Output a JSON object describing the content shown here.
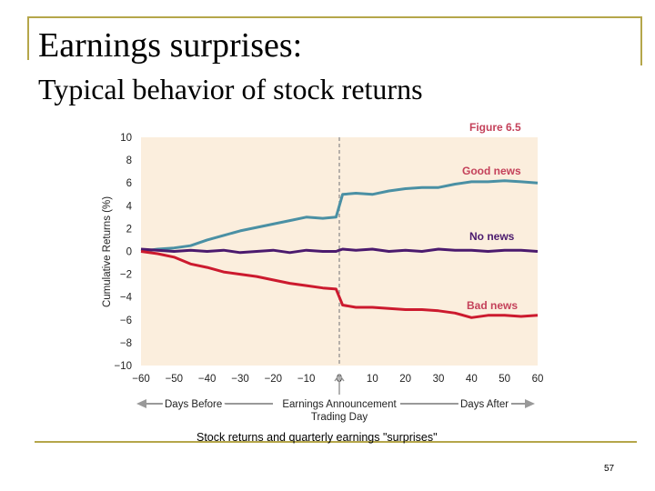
{
  "slide": {
    "title": "Earnings surprises:",
    "subtitle": "Typical behavior of stock returns",
    "caption": "Stock returns and quarterly earnings \"surprises\"",
    "page_number": "57"
  },
  "chart_data": {
    "type": "line",
    "figure_label": "Figure 6.5",
    "title": "",
    "xlabel": "Earnings Announcement",
    "xlabel_sub": "Trading Day",
    "ylabel": "Cumulative Returns (%)",
    "xlim": [
      -60,
      60
    ],
    "ylim": [
      -10,
      10
    ],
    "x_ticks": [
      -60,
      -50,
      -40,
      -30,
      -20,
      -10,
      0,
      10,
      20,
      30,
      40,
      50,
      60
    ],
    "y_ticks": [
      10,
      8,
      6,
      4,
      2,
      0,
      -2,
      -4,
      -6,
      -8,
      -10
    ],
    "arrow_left_label": "Days Before",
    "arrow_right_label": "Days After",
    "event_line_x": 0,
    "grid": false,
    "colors": {
      "plot_bg": "#fbeedd",
      "good": "#4a90a4",
      "none": "#4b1a6e",
      "bad": "#cc1a2e",
      "accent": "#c4415a"
    },
    "series": [
      {
        "name": "Good news",
        "color": "#4a90a4",
        "x": [
          -60,
          -55,
          -50,
          -45,
          -40,
          -35,
          -30,
          -25,
          -20,
          -15,
          -10,
          -5,
          -1,
          0,
          1,
          5,
          10,
          15,
          20,
          25,
          30,
          35,
          40,
          45,
          50,
          55,
          60
        ],
        "y": [
          0,
          0.2,
          0.3,
          0.5,
          1.0,
          1.4,
          1.8,
          2.1,
          2.4,
          2.7,
          3.0,
          2.9,
          3.0,
          4.0,
          5.0,
          5.1,
          5.0,
          5.3,
          5.5,
          5.6,
          5.6,
          5.9,
          6.1,
          6.1,
          6.2,
          6.1,
          6.0
        ]
      },
      {
        "name": "No news",
        "color": "#4b1a6e",
        "x": [
          -60,
          -55,
          -50,
          -45,
          -40,
          -35,
          -30,
          -25,
          -20,
          -15,
          -10,
          -5,
          -1,
          0,
          1,
          5,
          10,
          15,
          20,
          25,
          30,
          35,
          40,
          45,
          50,
          55,
          60
        ],
        "y": [
          0.2,
          0.1,
          0,
          0.1,
          0,
          0.1,
          -0.1,
          0,
          0.1,
          -0.1,
          0.1,
          0,
          0,
          0.1,
          0.2,
          0.1,
          0.2,
          0,
          0.1,
          0,
          0.2,
          0.1,
          0.1,
          0,
          0.1,
          0.1,
          0
        ]
      },
      {
        "name": "Bad news",
        "color": "#cc1a2e",
        "x": [
          -60,
          -55,
          -50,
          -45,
          -40,
          -35,
          -30,
          -25,
          -20,
          -15,
          -10,
          -5,
          -1,
          0,
          1,
          5,
          10,
          15,
          20,
          25,
          30,
          35,
          40,
          45,
          50,
          55,
          60
        ],
        "y": [
          0,
          -0.2,
          -0.5,
          -1.1,
          -1.4,
          -1.8,
          -2.0,
          -2.2,
          -2.5,
          -2.8,
          -3.0,
          -3.2,
          -3.3,
          -4.0,
          -4.7,
          -4.9,
          -4.9,
          -5.0,
          -5.1,
          -5.1,
          -5.2,
          -5.4,
          -5.8,
          -5.6,
          -5.6,
          -5.7,
          -5.6
        ]
      }
    ]
  }
}
